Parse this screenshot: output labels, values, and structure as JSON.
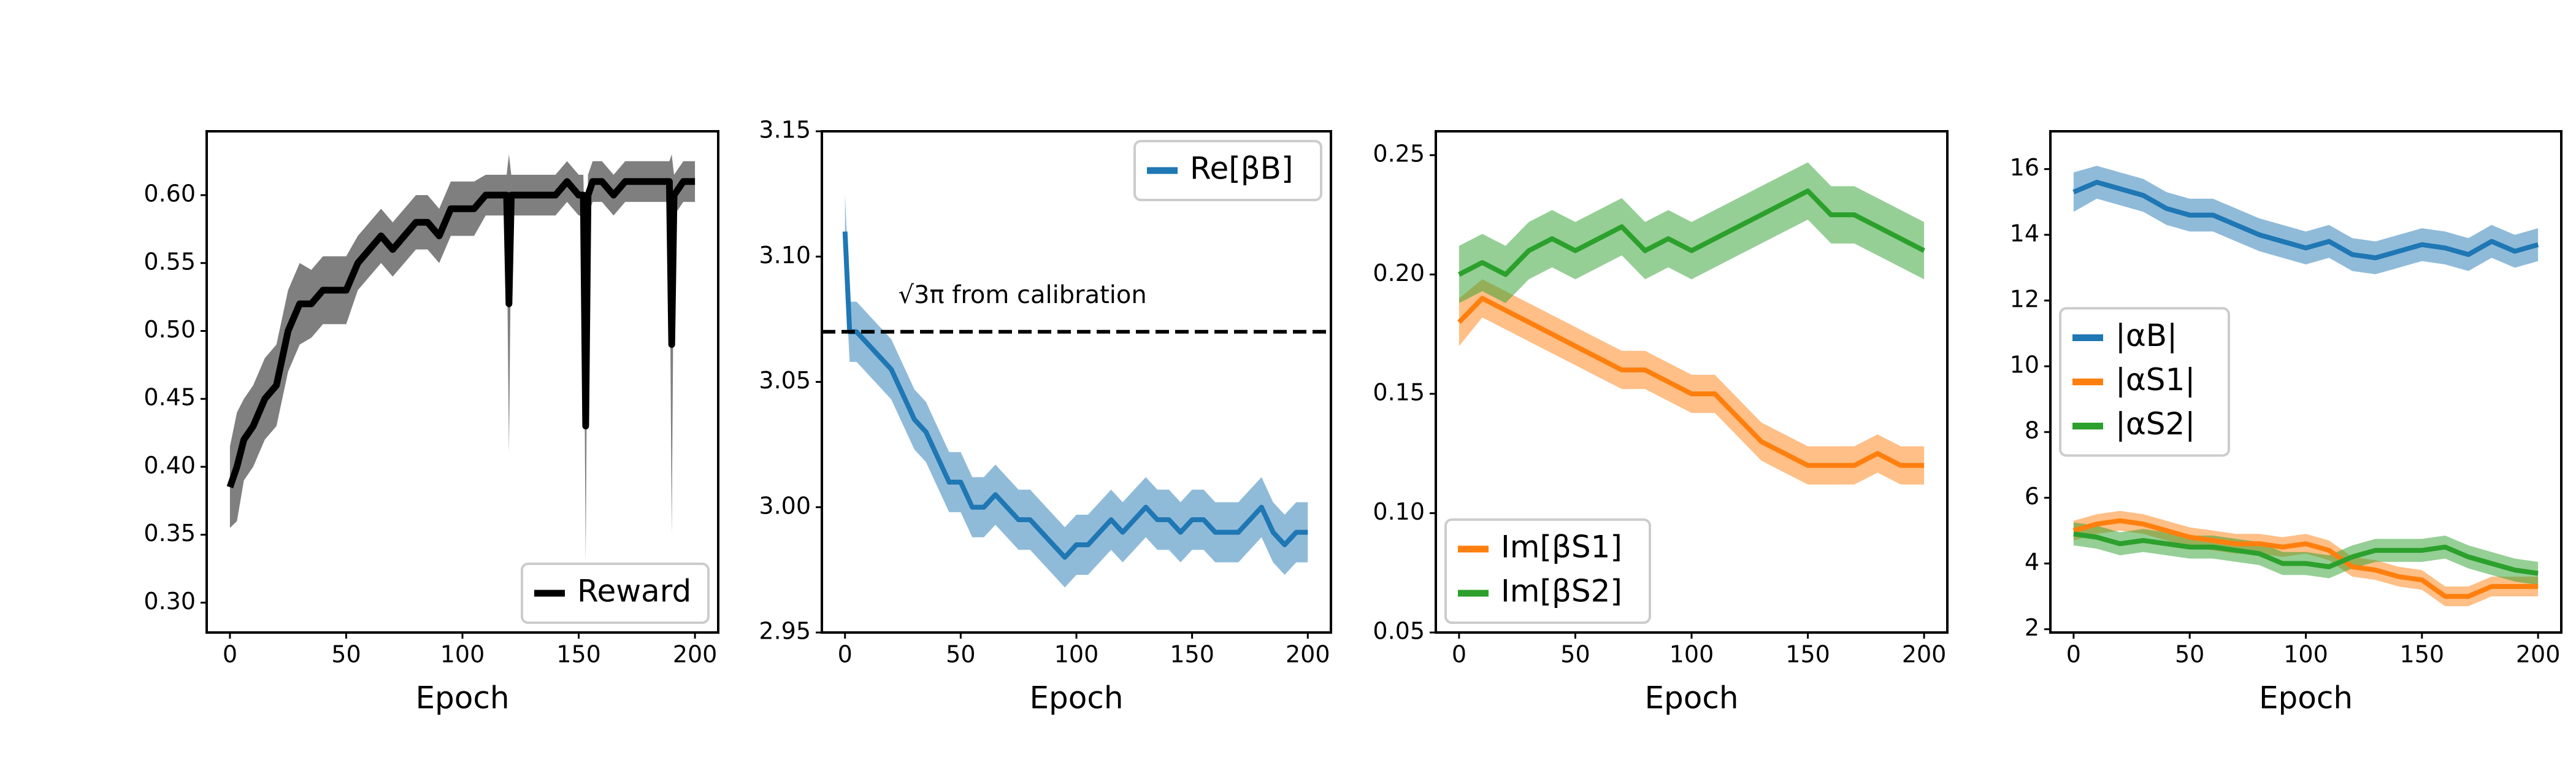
{
  "chart_data": [
    {
      "type": "line",
      "xlabel": "Epoch",
      "legend": "lower right",
      "band_alpha": 0.5,
      "x": [
        0,
        3,
        6,
        10,
        15,
        20,
        25,
        30,
        35,
        40,
        45,
        50,
        55,
        60,
        65,
        70,
        75,
        80,
        85,
        90,
        95,
        100,
        105,
        110,
        115,
        119,
        120,
        121,
        125,
        130,
        135,
        140,
        145,
        150,
        152,
        153,
        154,
        156,
        160,
        165,
        170,
        175,
        180,
        185,
        189,
        190,
        191,
        195,
        200
      ],
      "series": [
        {
          "name": "Reward",
          "color": "#000000",
          "values": [
            0.385,
            0.4,
            0.42,
            0.43,
            0.45,
            0.46,
            0.5,
            0.52,
            0.52,
            0.53,
            0.53,
            0.53,
            0.55,
            0.56,
            0.57,
            0.56,
            0.57,
            0.58,
            0.58,
            0.57,
            0.59,
            0.59,
            0.59,
            0.6,
            0.6,
            0.6,
            0.52,
            0.6,
            0.6,
            0.6,
            0.6,
            0.6,
            0.61,
            0.6,
            0.6,
            0.43,
            0.6,
            0.61,
            0.61,
            0.6,
            0.61,
            0.61,
            0.61,
            0.61,
            0.61,
            0.49,
            0.6,
            0.61,
            0.61
          ],
          "errors": [
            0.03,
            0.04,
            0.03,
            0.03,
            0.03,
            0.03,
            0.03,
            0.03,
            0.025,
            0.025,
            0.025,
            0.025,
            0.02,
            0.02,
            0.02,
            0.02,
            0.02,
            0.02,
            0.02,
            0.02,
            0.02,
            0.02,
            0.02,
            0.015,
            0.015,
            0.015,
            0.11,
            0.015,
            0.015,
            0.015,
            0.015,
            0.015,
            0.015,
            0.015,
            0.015,
            0.1,
            0.015,
            0.015,
            0.015,
            0.015,
            0.015,
            0.015,
            0.015,
            0.015,
            0.015,
            0.14,
            0.015,
            0.015,
            0.015
          ]
        }
      ],
      "xlim": [
        -10,
        210
      ],
      "xticks": [
        0,
        50,
        100,
        150,
        200
      ],
      "ylim": [
        0.278,
        0.647
      ],
      "yticks": [
        {
          "value": 0.3,
          "label": "0.30"
        },
        0.35,
        {
          "value": 0.4,
          "label": "0.40"
        },
        0.45,
        {
          "value": 0.5,
          "label": "0.50"
        },
        0.55,
        {
          "value": 0.6,
          "label": "0.60"
        }
      ]
    },
    {
      "type": "line",
      "xlabel": "Epoch",
      "legend": "upper right",
      "band_alpha": 0.5,
      "x": [
        0,
        2,
        5,
        10,
        15,
        20,
        25,
        30,
        35,
        40,
        45,
        50,
        55,
        60,
        65,
        70,
        75,
        80,
        85,
        90,
        95,
        100,
        105,
        110,
        115,
        120,
        125,
        130,
        135,
        140,
        145,
        150,
        155,
        160,
        165,
        170,
        175,
        180,
        185,
        190,
        195,
        200
      ],
      "series": [
        {
          "name": "Re[βB]",
          "color": "#1f77b4",
          "values": [
            3.11,
            3.07,
            3.07,
            3.065,
            3.06,
            3.055,
            3.045,
            3.035,
            3.03,
            3.02,
            3.01,
            3.01,
            3.0,
            3.0,
            3.005,
            3.0,
            2.995,
            2.995,
            2.99,
            2.985,
            2.98,
            2.985,
            2.985,
            2.99,
            2.995,
            2.99,
            2.995,
            3.0,
            2.995,
            2.995,
            2.99,
            2.995,
            2.995,
            2.99,
            2.99,
            2.99,
            2.995,
            3.0,
            2.99,
            2.985,
            2.99,
            2.99
          ],
          "errors": [
            0.015,
            0.012,
            0.012,
            0.012,
            0.012,
            0.012,
            0.012,
            0.012,
            0.012,
            0.012,
            0.012,
            0.012,
            0.012,
            0.012,
            0.012,
            0.012,
            0.012,
            0.012,
            0.012,
            0.012,
            0.012,
            0.012,
            0.012,
            0.012,
            0.012,
            0.012,
            0.012,
            0.012,
            0.012,
            0.012,
            0.012,
            0.012,
            0.012,
            0.012,
            0.012,
            0.012,
            0.012,
            0.012,
            0.012,
            0.012,
            0.012,
            0.012
          ]
        }
      ],
      "hline": {
        "value": 3.07,
        "color": "#000000",
        "label": "√3π from calibration"
      },
      "xlim": [
        -10,
        210
      ],
      "xticks": [
        0,
        50,
        100,
        150,
        200
      ],
      "ylim": [
        2.95,
        3.15
      ],
      "yticks": [
        2.95,
        {
          "value": 3.0,
          "label": "3.00"
        },
        3.05,
        {
          "value": 3.1,
          "label": "3.10"
        },
        3.15
      ]
    },
    {
      "type": "line",
      "xlabel": "Epoch",
      "legend": "lower left",
      "band_alpha": 0.5,
      "x": [
        0,
        10,
        20,
        30,
        40,
        50,
        60,
        70,
        80,
        90,
        100,
        110,
        120,
        130,
        140,
        150,
        160,
        170,
        180,
        190,
        200
      ],
      "series": [
        {
          "name": "Im[βS1]",
          "color": "#ff7f0e",
          "values": [
            0.18,
            0.19,
            0.185,
            0.18,
            0.175,
            0.17,
            0.165,
            0.16,
            0.16,
            0.155,
            0.15,
            0.15,
            0.14,
            0.13,
            0.125,
            0.12,
            0.12,
            0.12,
            0.125,
            0.12,
            0.12
          ],
          "errors": [
            0.01,
            0.008,
            0.008,
            0.008,
            0.008,
            0.008,
            0.008,
            0.008,
            0.008,
            0.008,
            0.008,
            0.008,
            0.008,
            0.008,
            0.008,
            0.008,
            0.008,
            0.008,
            0.008,
            0.008,
            0.008
          ]
        },
        {
          "name": "Im[βS2]",
          "color": "#2ca02c",
          "values": [
            0.2,
            0.205,
            0.2,
            0.21,
            0.215,
            0.21,
            0.215,
            0.22,
            0.21,
            0.215,
            0.21,
            0.215,
            0.22,
            0.225,
            0.23,
            0.235,
            0.225,
            0.225,
            0.22,
            0.215,
            0.21
          ],
          "errors": [
            0.012,
            0.012,
            0.012,
            0.012,
            0.012,
            0.012,
            0.012,
            0.012,
            0.012,
            0.012,
            0.012,
            0.012,
            0.012,
            0.012,
            0.012,
            0.012,
            0.012,
            0.012,
            0.012,
            0.012,
            0.012
          ]
        }
      ],
      "xlim": [
        -10,
        210
      ],
      "xticks": [
        0,
        50,
        100,
        150,
        200
      ],
      "ylim": [
        0.05,
        0.26
      ],
      "yticks": [
        0.05,
        {
          "value": 0.1,
          "label": "0.10"
        },
        0.15,
        {
          "value": 0.2,
          "label": "0.20"
        },
        0.25
      ]
    },
    {
      "type": "line",
      "xlabel": "Epoch",
      "legend": "center left",
      "band_alpha": 0.5,
      "x": [
        0,
        10,
        20,
        30,
        40,
        50,
        60,
        70,
        80,
        90,
        100,
        110,
        120,
        130,
        140,
        150,
        160,
        170,
        180,
        190,
        200
      ],
      "series": [
        {
          "name": "|αB|",
          "color": "#1f77b4",
          "values": [
            15.3,
            15.6,
            15.4,
            15.2,
            14.8,
            14.6,
            14.6,
            14.3,
            14.0,
            13.8,
            13.6,
            13.8,
            13.4,
            13.3,
            13.5,
            13.7,
            13.6,
            13.4,
            13.8,
            13.5,
            13.7
          ],
          "errors": [
            0.6,
            0.5,
            0.5,
            0.5,
            0.5,
            0.5,
            0.5,
            0.5,
            0.5,
            0.5,
            0.5,
            0.5,
            0.5,
            0.5,
            0.5,
            0.5,
            0.5,
            0.5,
            0.5,
            0.5,
            0.5
          ]
        },
        {
          "name": "|αS1|",
          "color": "#ff7f0e",
          "values": [
            5.0,
            5.2,
            5.3,
            5.2,
            5.0,
            4.8,
            4.7,
            4.6,
            4.6,
            4.5,
            4.6,
            4.4,
            3.9,
            3.8,
            3.6,
            3.5,
            3.0,
            3.0,
            3.3,
            3.3,
            3.3
          ],
          "errors": [
            0.3,
            0.3,
            0.3,
            0.3,
            0.3,
            0.3,
            0.3,
            0.3,
            0.3,
            0.3,
            0.3,
            0.3,
            0.3,
            0.3,
            0.3,
            0.3,
            0.3,
            0.3,
            0.3,
            0.3,
            0.3
          ]
        },
        {
          "name": "|αS2|",
          "color": "#2ca02c",
          "values": [
            4.9,
            4.8,
            4.6,
            4.7,
            4.6,
            4.5,
            4.5,
            4.4,
            4.3,
            4.0,
            4.0,
            3.9,
            4.2,
            4.4,
            4.4,
            4.4,
            4.5,
            4.2,
            4.0,
            3.8,
            3.7
          ],
          "errors": [
            0.35,
            0.35,
            0.35,
            0.35,
            0.35,
            0.35,
            0.35,
            0.35,
            0.35,
            0.35,
            0.35,
            0.35,
            0.35,
            0.35,
            0.35,
            0.35,
            0.35,
            0.35,
            0.35,
            0.35,
            0.35
          ]
        }
      ],
      "xlim": [
        -10,
        210
      ],
      "xticks": [
        0,
        50,
        100,
        150,
        200
      ],
      "ylim": [
        1.9,
        17.15
      ],
      "yticks": [
        2,
        4,
        6,
        8,
        10,
        12,
        14,
        16
      ]
    }
  ]
}
